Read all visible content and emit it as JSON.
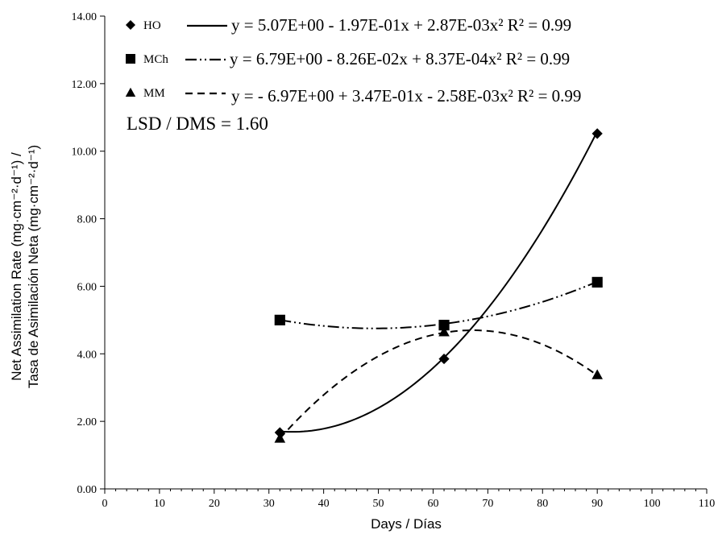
{
  "chart_data": {
    "type": "scatter",
    "xlabel": "Days / Días",
    "ylabel_line1": "Net Assimilation Rate (mg·cm⁻²·d⁻¹) /",
    "ylabel_line2": "Tasa de Asimilación Neta (mg·cm⁻²·d⁻¹)",
    "xlim": [
      0,
      110
    ],
    "ylim": [
      0,
      14
    ],
    "x_ticks": [
      "0",
      "10",
      "20",
      "30",
      "40",
      "50",
      "60",
      "70",
      "80",
      "90",
      "100",
      "110"
    ],
    "y_ticks": [
      "0.00",
      "2.00",
      "4.00",
      "6.00",
      "8.00",
      "10.00",
      "12.00",
      "14.00"
    ],
    "annotation": "LSD / DMS = 1.60",
    "series": [
      {
        "name": "HO",
        "marker": "diamond",
        "line": "solid",
        "x": [
          32,
          62,
          90
        ],
        "values": [
          1.67,
          3.85,
          10.52
        ],
        "equation": "y = 5.07E+00 - 1.97E-01x + 2.87E-03x²",
        "r2": "R² = 0.99",
        "fit": [
          5.07,
          -0.197,
          0.00287
        ]
      },
      {
        "name": "MCh",
        "marker": "square",
        "line": "dash-dot-dot",
        "x": [
          32,
          62,
          90
        ],
        "values": [
          5.0,
          4.85,
          6.12
        ],
        "equation": "y = 6.79E+00 - 8.26E-02x + 8.37E-04x²",
        "r2": "R² = 0.99",
        "fit": [
          6.79,
          -0.0826,
          0.000837
        ]
      },
      {
        "name": "MM",
        "marker": "triangle",
        "line": "dashed",
        "x": [
          32,
          62,
          90
        ],
        "values": [
          1.5,
          4.65,
          3.38
        ],
        "equation": "y = - 6.97E+00 + 3.47E-01x - 2.58E-03x²",
        "r2": "R² = 0.99",
        "fit": [
          -6.97,
          0.347,
          -0.00258
        ]
      }
    ]
  }
}
